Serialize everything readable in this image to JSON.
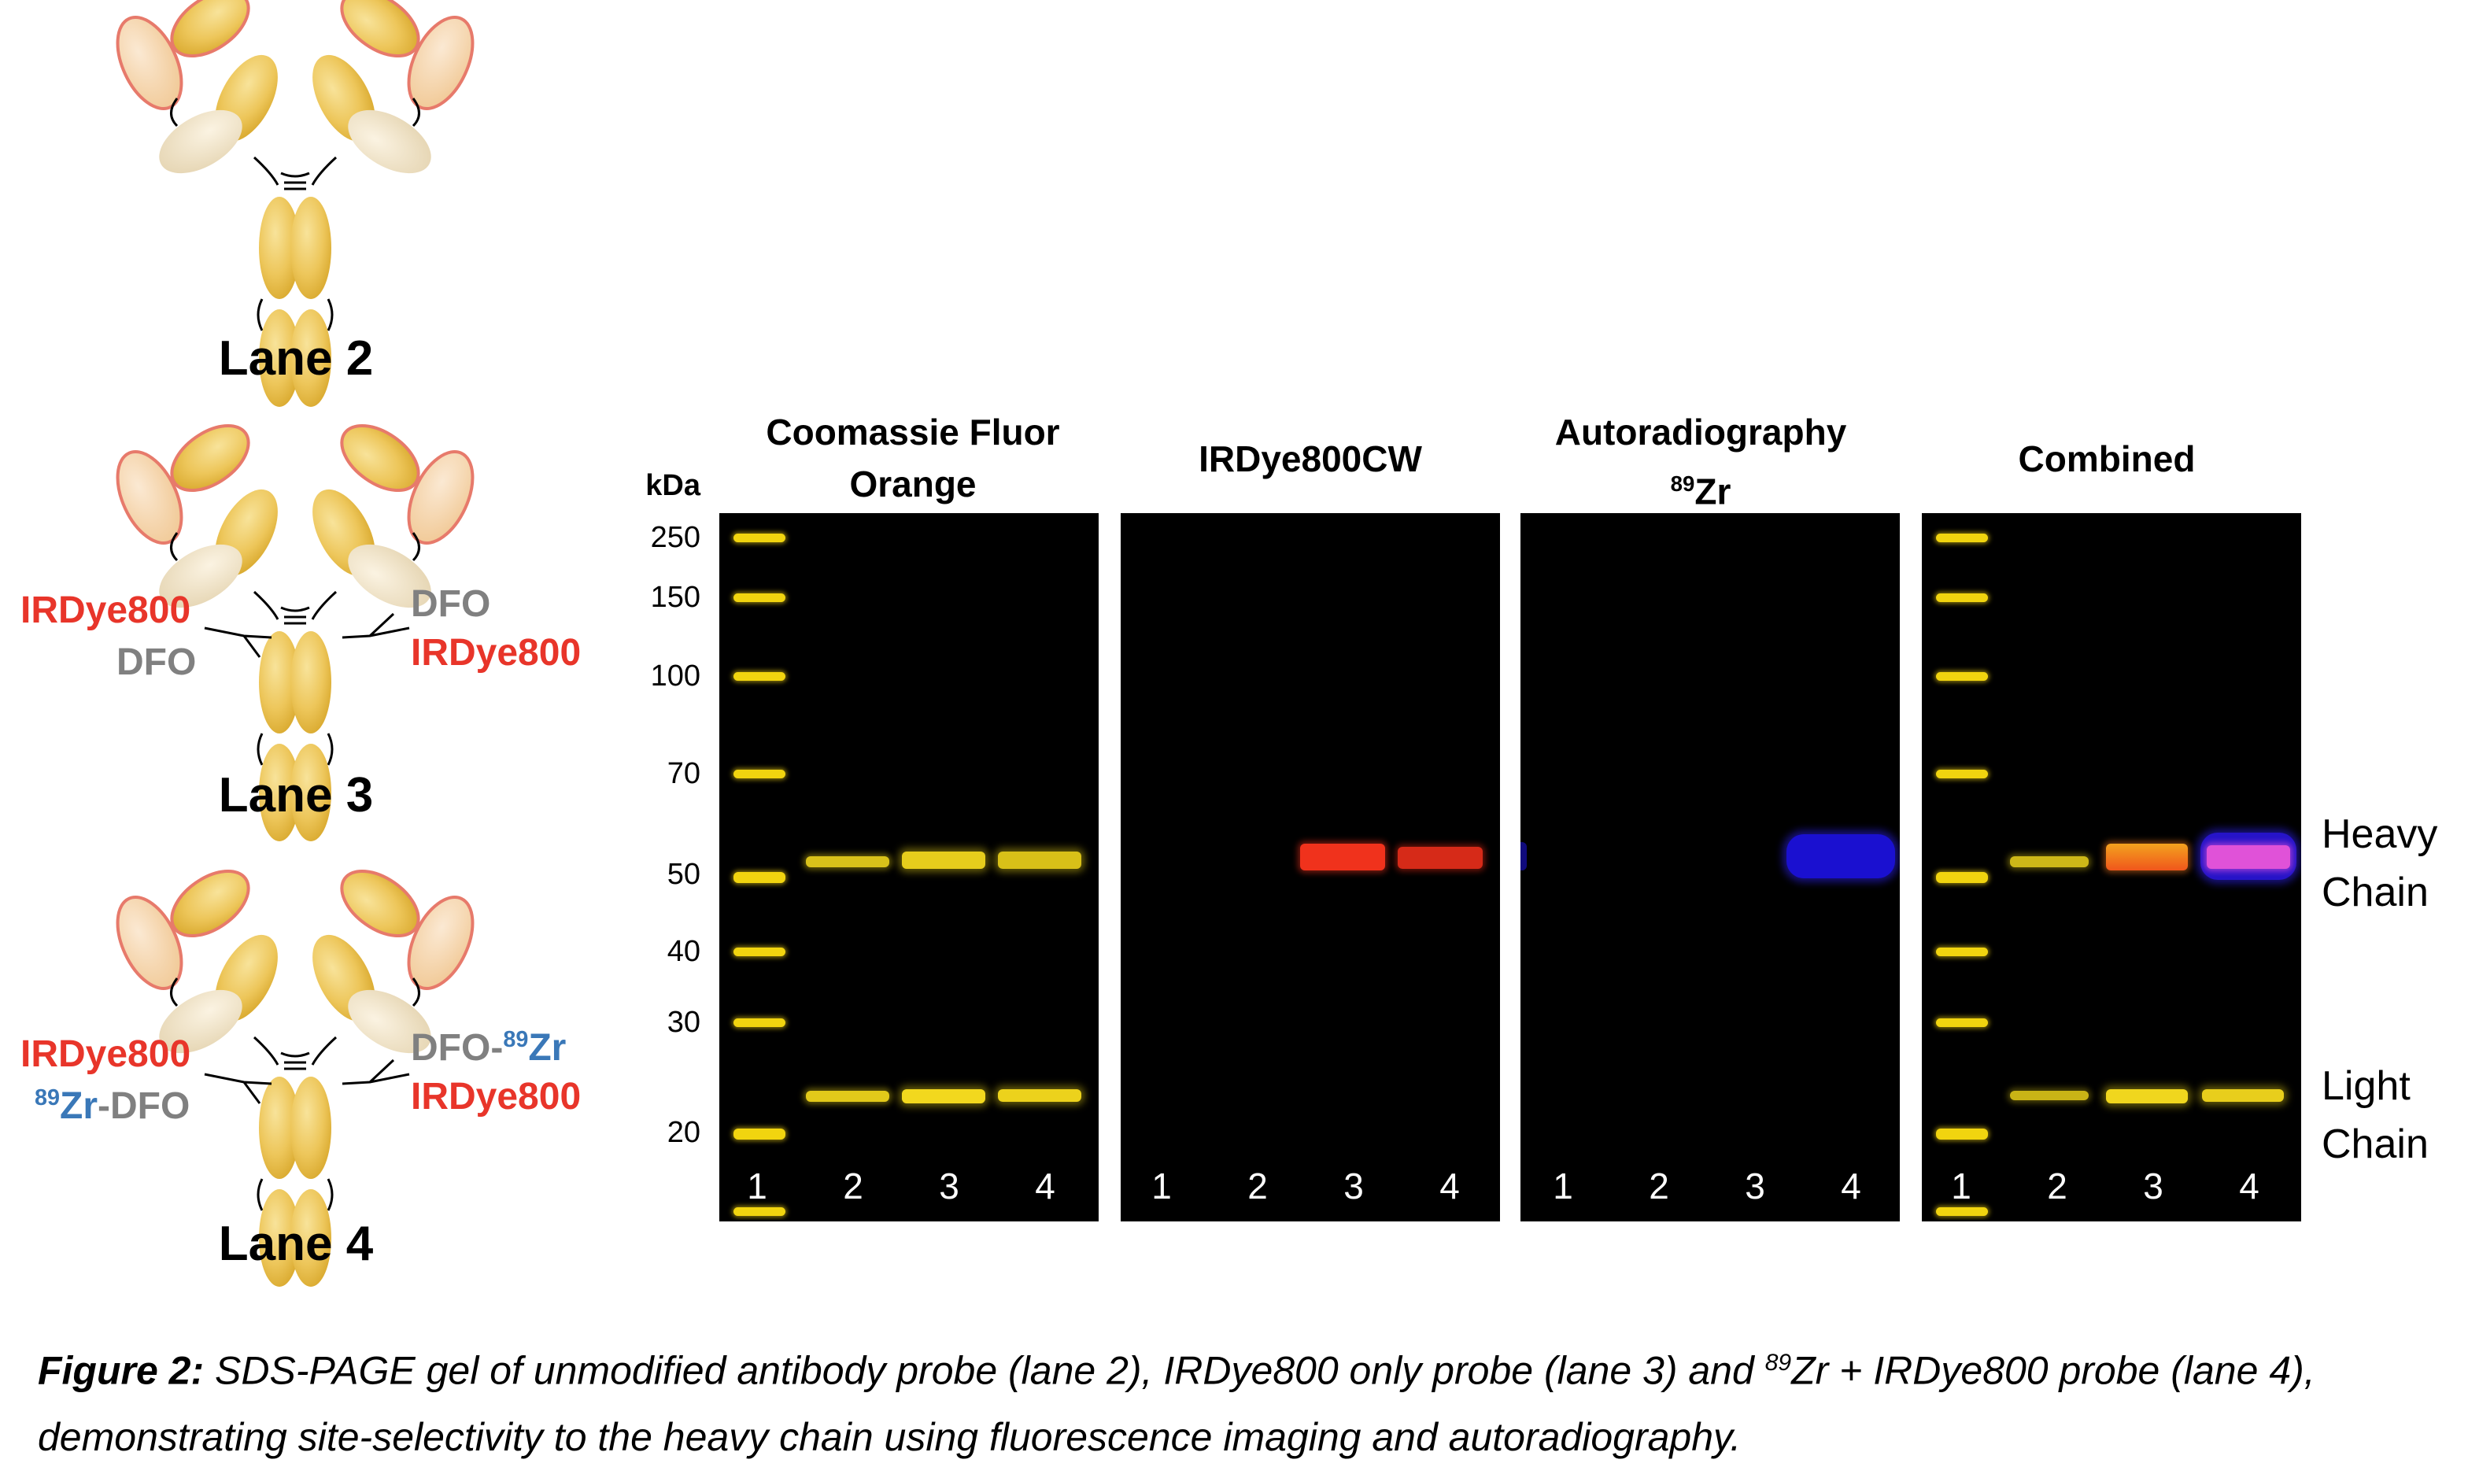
{
  "lanes": [
    {
      "title": "Lane 2"
    },
    {
      "title": "Lane 3",
      "left_label_top": "IRDye800",
      "left_label_bottom": "DFO",
      "right_label_top": "DFO",
      "right_label_bottom": "IRDye800"
    },
    {
      "title": "Lane 4",
      "left_label_top": "IRDye800",
      "left_label_bottom_iso": "89",
      "left_label_bottom_el": "Zr",
      "left_label_bottom_rest": "-DFO",
      "right_label_top_pre": "DFO-",
      "right_label_top_iso": "89",
      "right_label_top_el": "Zr",
      "right_label_bottom": "IRDye800"
    }
  ],
  "kda_header": "kDa",
  "kda_ticks": [
    "250",
    "150",
    "100",
    "70",
    "50",
    "40",
    "30",
    "20"
  ],
  "panels": [
    {
      "title_line1": "Coomassie Fluor",
      "title_line2": "Orange"
    },
    {
      "title_line1": "IRDye800CW",
      "title_line2": ""
    },
    {
      "title_line1": "Autoradiography",
      "title_line2_iso": "89",
      "title_line2_el": "Zr"
    },
    {
      "title_line1": "Combined",
      "title_line2": ""
    }
  ],
  "lane_numbers": [
    "1",
    "2",
    "3",
    "4"
  ],
  "side_labels": {
    "heavy_1": "Heavy",
    "heavy_2": "Chain",
    "light_1": "Light",
    "light_2": "Chain"
  },
  "caption": {
    "label": "Figure 2:",
    "text_a": " SDS-PAGE gel of unmodified antibody probe (lane 2), IRDye800 only probe (lane 3) and ",
    "iso": "89",
    "text_b": "Zr + IRDye800 probe (lane 4), demonstrating site-selectivity to the heavy chain using fluorescence imaging and autoradiography."
  },
  "colors": {
    "marker": "#f1d40f",
    "irdye": "#e8352a",
    "dfo": "#808080",
    "zr": "#3a78b8",
    "radio": "#1a10d0"
  }
}
